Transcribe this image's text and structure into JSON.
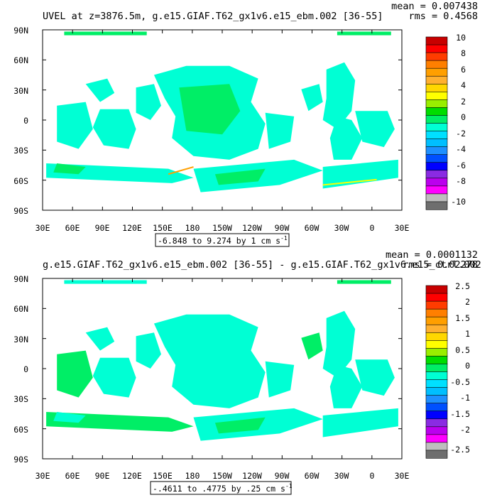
{
  "panels": [
    {
      "title": "UVEL at z=3876.5m, g.e15.GIAF.T62_gx1v6.e15_ebm.002 [36-55]",
      "mean_text": "mean = 0.007438",
      "rms_text": "rms = 0.4568",
      "range_text": "-6.848 to 9.274 by 1 cm s",
      "range_unit_sup": "-1",
      "lat_ticks": [
        "90N",
        "60N",
        "30N",
        "0",
        "30S",
        "60S",
        "90S"
      ],
      "lon_ticks": [
        "30E",
        "60E",
        "90E",
        "120E",
        "150E",
        "180",
        "150W",
        "120W",
        "90W",
        "60W",
        "30W",
        "0",
        "30E"
      ],
      "colorbar_labels": [
        "10",
        "8",
        "6",
        "4",
        "2",
        "0",
        "-2",
        "-4",
        "-6",
        "-8",
        "-10"
      ]
    },
    {
      "title": "g.e15.GIAF.T62_gx1v6.e15_ebm.002 [36-55] - g.e15.GIAF.T62_gx1v6.e15_ctrl.002",
      "mean_text": "mean = 0.0001132",
      "rms_text": "rms = 0.02278",
      "range_text": "-.4611 to .4775 by .25 cm s",
      "range_unit_sup": "-1",
      "lat_ticks": [
        "90N",
        "60N",
        "30N",
        "0",
        "30S",
        "60S",
        "90S"
      ],
      "lon_ticks": [
        "30E",
        "60E",
        "90E",
        "120E",
        "150E",
        "180",
        "150W",
        "120W",
        "90W",
        "60W",
        "30W",
        "0",
        "30E"
      ],
      "colorbar_labels": [
        "2.5",
        "2",
        "1.5",
        "1",
        "0.5",
        "0",
        "-0.5",
        "-1",
        "-1.5",
        "-2",
        "-2.5"
      ]
    }
  ],
  "chart_data": [
    {
      "type": "heatmap",
      "title": "UVEL at z=3876.5m, g.e15.GIAF.T62_gx1v6.e15_ebm.002 [36-55]",
      "variable": "UVEL",
      "depth": "z=3876.5m",
      "units": "cm s-1",
      "mean": 0.007438,
      "rms": 0.4568,
      "min": -6.848,
      "max": 9.274,
      "contour_interval": 1,
      "xlim": [
        "30E",
        "30E"
      ],
      "ylim": [
        "90S",
        "90N"
      ],
      "colorbar": {
        "levels": [
          -10,
          -9,
          -8,
          -7,
          -6,
          -5,
          -4,
          -3,
          -2,
          -1,
          0,
          1,
          2,
          3,
          4,
          5,
          6,
          7,
          8,
          9,
          10
        ],
        "colors": [
          "#6e6e6e",
          "#bebebe",
          "#ff00ff",
          "#bb00ee",
          "#8a2be2",
          "#0000ff",
          "#0050ff",
          "#1e90ff",
          "#00bfff",
          "#00e0ff",
          "#00ffd4",
          "#00ee66",
          "#00dd00",
          "#99ee00",
          "#ffff00",
          "#ffd700",
          "#ffb030",
          "#ff9f00",
          "#ff7f00",
          "#ff3c00",
          "#ff0000",
          "#c80000"
        ]
      }
    },
    {
      "type": "heatmap",
      "title": "g.e15.GIAF.T62_gx1v6.e15_ebm.002 [36-55] - g.e15.GIAF.T62_gx1v6.e15_ctrl.002",
      "units": "cm s-1",
      "mean": 0.0001132,
      "rms": 0.02278,
      "min": -0.4611,
      "max": 0.4775,
      "contour_interval": 0.25,
      "xlim": [
        "30E",
        "30E"
      ],
      "ylim": [
        "90S",
        "90N"
      ],
      "colorbar": {
        "levels": [
          -2.5,
          -2.25,
          -2,
          -1.75,
          -1.5,
          -1.25,
          -1,
          -0.75,
          -0.5,
          -0.25,
          0,
          0.25,
          0.5,
          0.75,
          1,
          1.25,
          1.5,
          1.75,
          2,
          2.25,
          2.5
        ],
        "colors": [
          "#6e6e6e",
          "#bebebe",
          "#ff00ff",
          "#bb00ee",
          "#8a2be2",
          "#0000ff",
          "#0050ff",
          "#1e90ff",
          "#00bfff",
          "#00e0ff",
          "#00ffd4",
          "#00ee66",
          "#00dd00",
          "#99ee00",
          "#ffff00",
          "#ffd700",
          "#ffb030",
          "#ff9f00",
          "#ff7f00",
          "#ff3c00",
          "#ff0000",
          "#c80000"
        ]
      }
    }
  ]
}
